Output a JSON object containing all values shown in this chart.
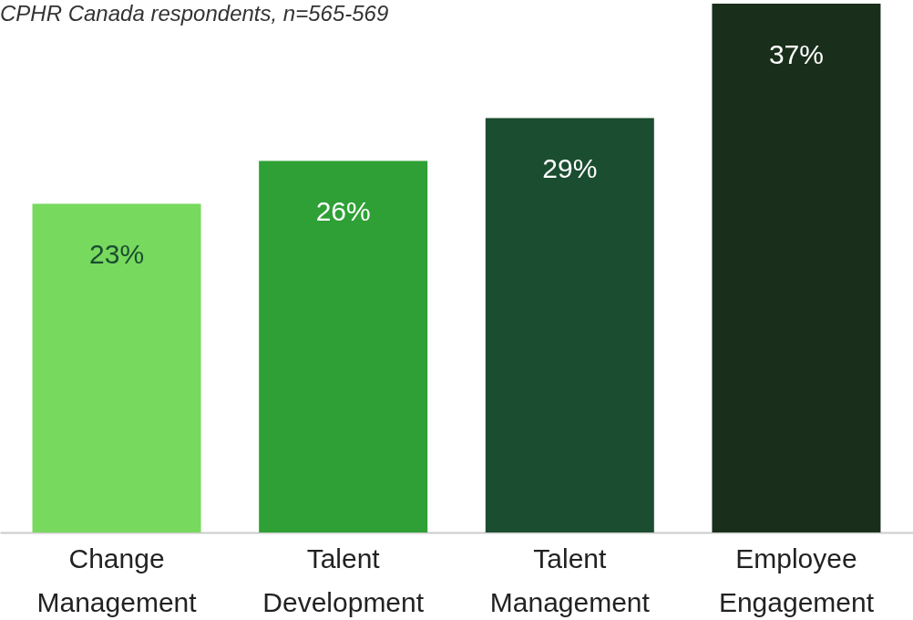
{
  "chart_data": {
    "type": "bar",
    "subtitle": "CPHR Canada respondents, n=565-569",
    "categories": [
      "Change Management",
      "Talent Development",
      "Talent Management",
      "Employee Engagement"
    ],
    "values": [
      23,
      26,
      29,
      37
    ],
    "colors": [
      "#77d95e",
      "#2ea036",
      "#1b4d30",
      "#1a2f1b"
    ],
    "value_labels": [
      "23%",
      "26%",
      "29%",
      "37%"
    ],
    "grid": false
  }
}
